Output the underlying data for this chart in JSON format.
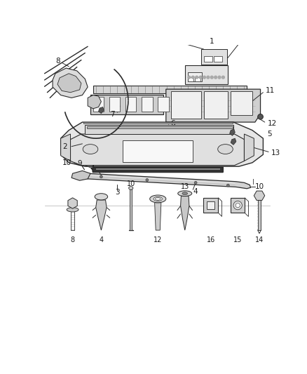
{
  "background_color": "#ffffff",
  "fig_width": 4.38,
  "fig_height": 5.33,
  "dpi": 100,
  "line_color": "#2a2a2a",
  "label_color": "#1a1a1a",
  "font_size": 7.5,
  "small_font_size": 7
}
